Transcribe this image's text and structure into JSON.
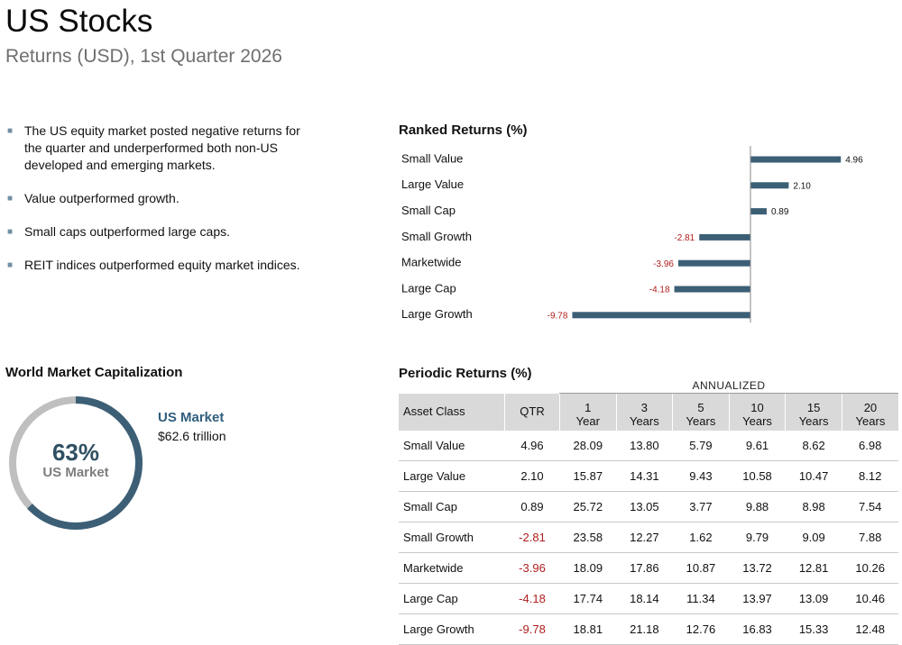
{
  "header": {
    "title": "US Stocks",
    "subtitle": "Returns (USD), 1st Quarter 2026"
  },
  "bullets": [
    "The US equity market posted negative returns for the quarter and underperformed both non-US developed and emerging markets.",
    "Value outperformed growth.",
    "Small caps outperformed large caps.",
    "REIT indices outperformed equity market indices."
  ],
  "ranked": {
    "title": "Ranked Returns (%)"
  },
  "chart_data": [
    {
      "type": "bar",
      "orientation": "horizontal",
      "title": "Ranked Returns (%)",
      "categories": [
        "Small Value",
        "Large Value",
        "Small Cap",
        "Small Growth",
        "Marketwide",
        "Large Cap",
        "Large Growth"
      ],
      "values": [
        4.96,
        2.1,
        0.89,
        -2.81,
        -3.96,
        -4.18,
        -9.78
      ],
      "value_labels": [
        "4.96",
        "2.10",
        "0.89",
        "-2.81",
        "-3.96",
        "-4.18",
        "-9.78"
      ],
      "xlim": [
        -10,
        5
      ],
      "bar_color": "#3c5f76",
      "negative_label_color": "#b01e1e",
      "grid": false
    },
    {
      "type": "pie",
      "style": "donut",
      "title": "World Market Capitalization",
      "values": [
        63,
        37
      ],
      "colors": [
        "#3c5f76",
        "#bfbfbf"
      ]
    }
  ],
  "world_cap": {
    "title": "World Market Capitalization",
    "percent_label": "63%",
    "center_label": "US Market",
    "legend_name": "US Market",
    "legend_value": "$62.6 trillion"
  },
  "periodic": {
    "title": "Periodic Returns (%)",
    "annualized_label": "ANNUALIZED",
    "headers": [
      {
        "top": "",
        "bottom": "Asset Class"
      },
      {
        "top": "",
        "bottom": "QTR"
      },
      {
        "top": "1",
        "bottom": "Year"
      },
      {
        "top": "3",
        "bottom": "Years"
      },
      {
        "top": "5",
        "bottom": "Years"
      },
      {
        "top": "10",
        "bottom": "Years"
      },
      {
        "top": "15",
        "bottom": "Years"
      },
      {
        "top": "20",
        "bottom": "Years"
      }
    ],
    "rows": [
      [
        "Small Value",
        "4.96",
        "28.09",
        "13.80",
        "5.79",
        "9.61",
        "8.62",
        "6.98"
      ],
      [
        "Large Value",
        "2.10",
        "15.87",
        "14.31",
        "9.43",
        "10.58",
        "10.47",
        "8.12"
      ],
      [
        "Small Cap",
        "0.89",
        "25.72",
        "13.05",
        "3.77",
        "9.88",
        "8.98",
        "7.54"
      ],
      [
        "Small Growth",
        "-2.81",
        "23.58",
        "12.27",
        "1.62",
        "9.79",
        "9.09",
        "7.88"
      ],
      [
        "Marketwide",
        "-3.96",
        "18.09",
        "17.86",
        "10.87",
        "13.72",
        "12.81",
        "10.26"
      ],
      [
        "Large Cap",
        "-4.18",
        "17.74",
        "18.14",
        "11.34",
        "13.97",
        "13.09",
        "10.46"
      ],
      [
        "Large Growth",
        "-9.78",
        "18.81",
        "21.18",
        "12.76",
        "16.83",
        "15.33",
        "12.48"
      ]
    ],
    "negative_color": "#b01e1e"
  }
}
